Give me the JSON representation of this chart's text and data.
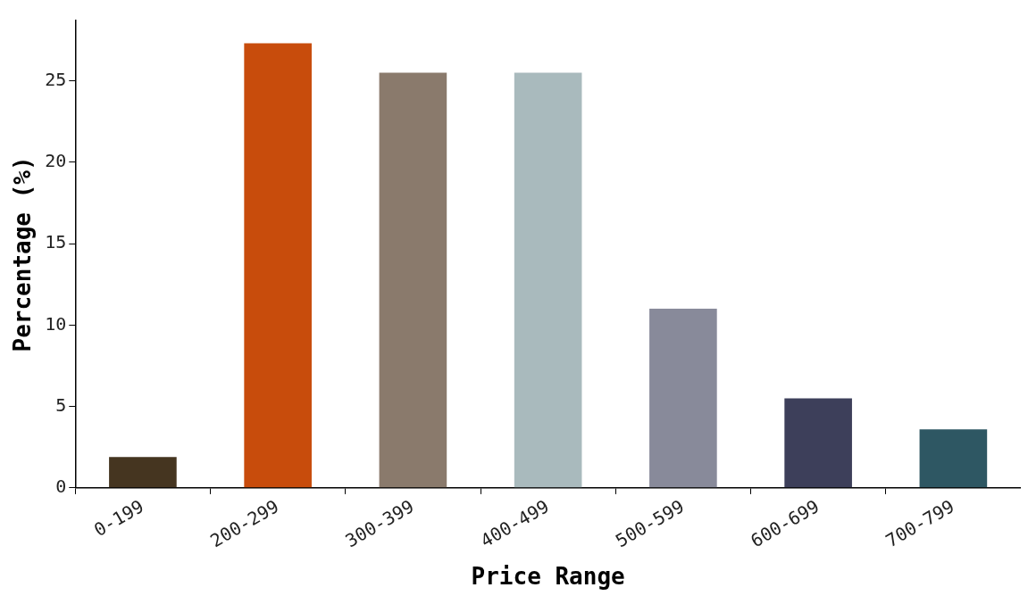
{
  "chart_data": {
    "type": "bar",
    "xlabel": "Price Range",
    "ylabel": "Percentage (%)",
    "categories": [
      "0-199",
      "200-299",
      "300-399",
      "400-499",
      "500-599",
      "600-699",
      "700-799"
    ],
    "values": [
      1.9,
      27.3,
      25.5,
      25.5,
      11.0,
      5.5,
      3.6
    ],
    "colors": [
      "#453520",
      "#c84c0c",
      "#8a7a6c",
      "#a9babd",
      "#888a9a",
      "#3d3f5a",
      "#2e5763"
    ],
    "ylim": [
      0,
      28.7
    ],
    "yticks": [
      0,
      5,
      10,
      15,
      20,
      25
    ],
    "grid": false,
    "legend": false
  }
}
